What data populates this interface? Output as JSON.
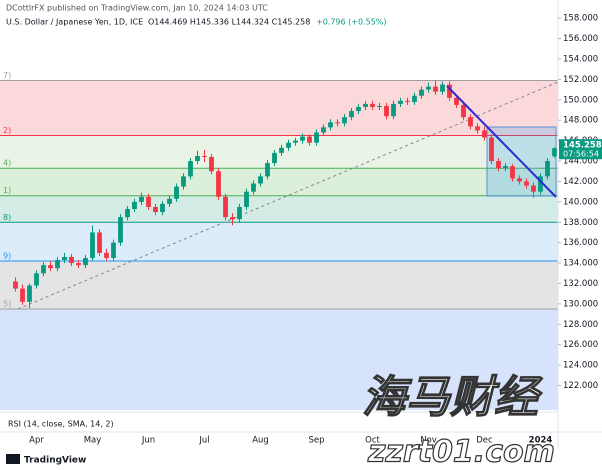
{
  "chart_data": {
    "type": "candlestick",
    "publisher": "DCottlrFX published on TradingView.com, Jan 10, 2024 14:03 UTC",
    "symbol": "U.S. Dollar / Japanese Yen, 1D, ICE",
    "ohlc_text": "O144.469 H145.336 L144.324 C145.258",
    "change_text": "+0.796 (+0.55%)",
    "countdown": "07:56:54",
    "indicator": "RSI (14, close, SMA, 14, 2)",
    "brand": "TradingView",
    "watermark": "海马财经",
    "watermark_url": "zzrt01.com",
    "up_color": "#089981",
    "down_color": "#f23645",
    "categories": [
      null,
      null,
      null,
      "Apr",
      null,
      null,
      null,
      null,
      null,
      null,
      null,
      "May",
      null,
      null,
      null,
      null,
      null,
      null,
      null,
      "Jun",
      null,
      null,
      null,
      null,
      null,
      null,
      null,
      "Jul",
      null,
      null,
      null,
      null,
      null,
      null,
      null,
      "Aug",
      null,
      null,
      null,
      null,
      null,
      null,
      null,
      "Sep",
      null,
      null,
      null,
      null,
      null,
      null,
      null,
      "Oct",
      null,
      null,
      null,
      null,
      null,
      null,
      null,
      "Nov",
      null,
      null,
      null,
      null,
      null,
      null,
      null,
      "Dec",
      null,
      null,
      null,
      null,
      null,
      null,
      null,
      "2024",
      null,
      null
    ],
    "open": [
      132.2,
      131.5,
      130.2,
      131.8,
      133.0,
      133.8,
      133.5,
      134.3,
      134.6,
      134.0,
      133.8,
      134.5,
      137.0,
      135.0,
      134.5,
      136.0,
      138.5,
      139.3,
      140.0,
      140.5,
      139.5,
      139.0,
      139.8,
      140.3,
      141.5,
      142.5,
      144.0,
      144.5,
      144.4,
      143.0,
      140.5,
      138.5,
      138.3,
      139.5,
      141.0,
      141.8,
      142.5,
      143.8,
      144.8,
      145.3,
      145.8,
      146.0,
      146.4,
      145.8,
      146.8,
      147.3,
      147.8,
      147.7,
      148.3,
      148.9,
      149.3,
      149.6,
      149.3,
      149.4,
      148.4,
      149.6,
      149.9,
      149.8,
      150.4,
      151.0,
      151.3,
      150.8,
      151.5,
      150.2,
      149.5,
      148.3,
      147.4,
      147.0,
      146.3,
      144.0,
      143.3,
      143.5,
      142.3,
      142.0,
      141.6,
      141.0,
      142.5,
      144.469
    ],
    "high": [
      132.6,
      131.9,
      132.0,
      133.3,
      134.1,
      134.2,
      134.6,
      135.0,
      134.9,
      134.3,
      134.8,
      137.7,
      137.3,
      135.4,
      136.3,
      138.8,
      139.6,
      140.3,
      140.9,
      140.8,
      139.8,
      140.1,
      140.6,
      141.8,
      142.8,
      144.3,
      145.0,
      145.1,
      144.7,
      143.3,
      140.8,
      138.9,
      139.8,
      141.3,
      142.1,
      142.8,
      144.1,
      145.1,
      145.6,
      146.1,
      146.3,
      146.7,
      146.6,
      147.1,
      147.6,
      148.1,
      148.1,
      148.6,
      149.2,
      149.6,
      149.9,
      149.9,
      149.7,
      149.7,
      149.9,
      150.2,
      150.2,
      150.7,
      151.3,
      151.7,
      151.9,
      151.8,
      151.8,
      150.5,
      149.8,
      148.6,
      147.7,
      147.4,
      146.6,
      144.3,
      143.8,
      143.7,
      142.6,
      142.3,
      141.9,
      142.8,
      144.3,
      145.336
    ],
    "low": [
      131.2,
      129.9,
      129.6,
      131.5,
      132.7,
      133.2,
      133.2,
      134.0,
      133.7,
      133.5,
      133.5,
      134.2,
      134.7,
      134.2,
      134.2,
      135.7,
      138.2,
      139.0,
      139.7,
      139.2,
      138.7,
      138.7,
      139.5,
      140.0,
      141.2,
      142.2,
      143.7,
      143.9,
      142.7,
      140.2,
      138.2,
      137.7,
      138.0,
      139.2,
      140.7,
      141.5,
      142.2,
      143.5,
      144.5,
      145.0,
      145.5,
      145.7,
      145.5,
      145.5,
      146.5,
      147.0,
      147.4,
      147.4,
      148.0,
      148.6,
      149.0,
      149.0,
      149.0,
      148.1,
      148.1,
      149.3,
      149.5,
      149.5,
      150.1,
      150.7,
      150.5,
      150.5,
      149.9,
      149.2,
      148.0,
      147.1,
      146.7,
      146.0,
      143.7,
      143.0,
      143.0,
      142.0,
      141.7,
      141.3,
      140.4,
      140.7,
      142.2,
      144.324
    ],
    "close": [
      131.5,
      130.2,
      131.8,
      133.0,
      133.8,
      133.5,
      134.3,
      134.6,
      134.0,
      133.8,
      134.5,
      137.0,
      135.0,
      134.5,
      136.0,
      138.5,
      139.3,
      140.0,
      140.5,
      139.5,
      139.0,
      139.8,
      140.3,
      141.5,
      142.5,
      144.0,
      144.5,
      144.4,
      143.0,
      140.5,
      138.5,
      138.3,
      139.5,
      141.0,
      141.8,
      142.5,
      143.8,
      144.8,
      145.3,
      145.8,
      146.0,
      146.4,
      145.8,
      146.8,
      147.3,
      147.8,
      147.7,
      148.3,
      148.9,
      149.3,
      149.6,
      149.3,
      149.4,
      148.4,
      149.6,
      149.9,
      149.8,
      150.4,
      151.0,
      151.3,
      150.8,
      151.5,
      150.2,
      149.5,
      148.3,
      147.4,
      147.0,
      146.3,
      144.0,
      143.3,
      143.5,
      142.3,
      142.0,
      141.6,
      141.0,
      142.5,
      144.0,
      145.258
    ],
    "ylim": [
      119.6,
      159
    ],
    "yticks": [
      {
        "value": 122,
        "label": "122.000"
      },
      {
        "value": 124,
        "label": "124.000"
      },
      {
        "value": 126,
        "label": "126.000"
      },
      {
        "value": 128,
        "label": "128.000"
      },
      {
        "value": 130,
        "label": "130.000"
      },
      {
        "value": 132,
        "label": "132.000"
      },
      {
        "value": 134,
        "label": "134.000"
      },
      {
        "value": 136,
        "label": "136.000"
      },
      {
        "value": 138,
        "label": "138.000"
      },
      {
        "value": 140,
        "label": "140.000"
      },
      {
        "value": 142,
        "label": "142.000"
      },
      {
        "value": 144,
        "label": "144.000"
      },
      {
        "value": 146,
        "label": "146.000"
      },
      {
        "value": 148,
        "label": "148.000"
      },
      {
        "value": 150,
        "label": "150.000"
      },
      {
        "value": 152,
        "label": "152.000"
      },
      {
        "value": 154,
        "label": "154.000"
      },
      {
        "value": 156,
        "label": "156.000"
      },
      {
        "value": 158,
        "label": "158.000"
      }
    ],
    "fib_levels": [
      {
        "value": 151.9,
        "label": "7)",
        "line_color": "#9e9e9e",
        "band_color": "#fbd9da"
      },
      {
        "value": 146.5,
        "label": "2)",
        "line_color": "#f23645",
        "band_color": "#eaf4e6"
      },
      {
        "value": 143.3,
        "label": "4)",
        "line_color": "#4caf50",
        "band_color": "#dcefdb"
      },
      {
        "value": 140.6,
        "label": "1)",
        "line_color": "#4caf50",
        "band_color": "#d3ece5"
      },
      {
        "value": 138.0,
        "label": "8)",
        "line_color": "#089981",
        "band_color": "#ddecfb"
      },
      {
        "value": 134.2,
        "label": "9)",
        "line_color": "#2196f3",
        "band_color": "#e4e4e4"
      },
      {
        "value": 129.5,
        "label": "5)",
        "line_color": "#9e9e9e",
        "band_color": "#d7e3fb"
      }
    ]
  }
}
